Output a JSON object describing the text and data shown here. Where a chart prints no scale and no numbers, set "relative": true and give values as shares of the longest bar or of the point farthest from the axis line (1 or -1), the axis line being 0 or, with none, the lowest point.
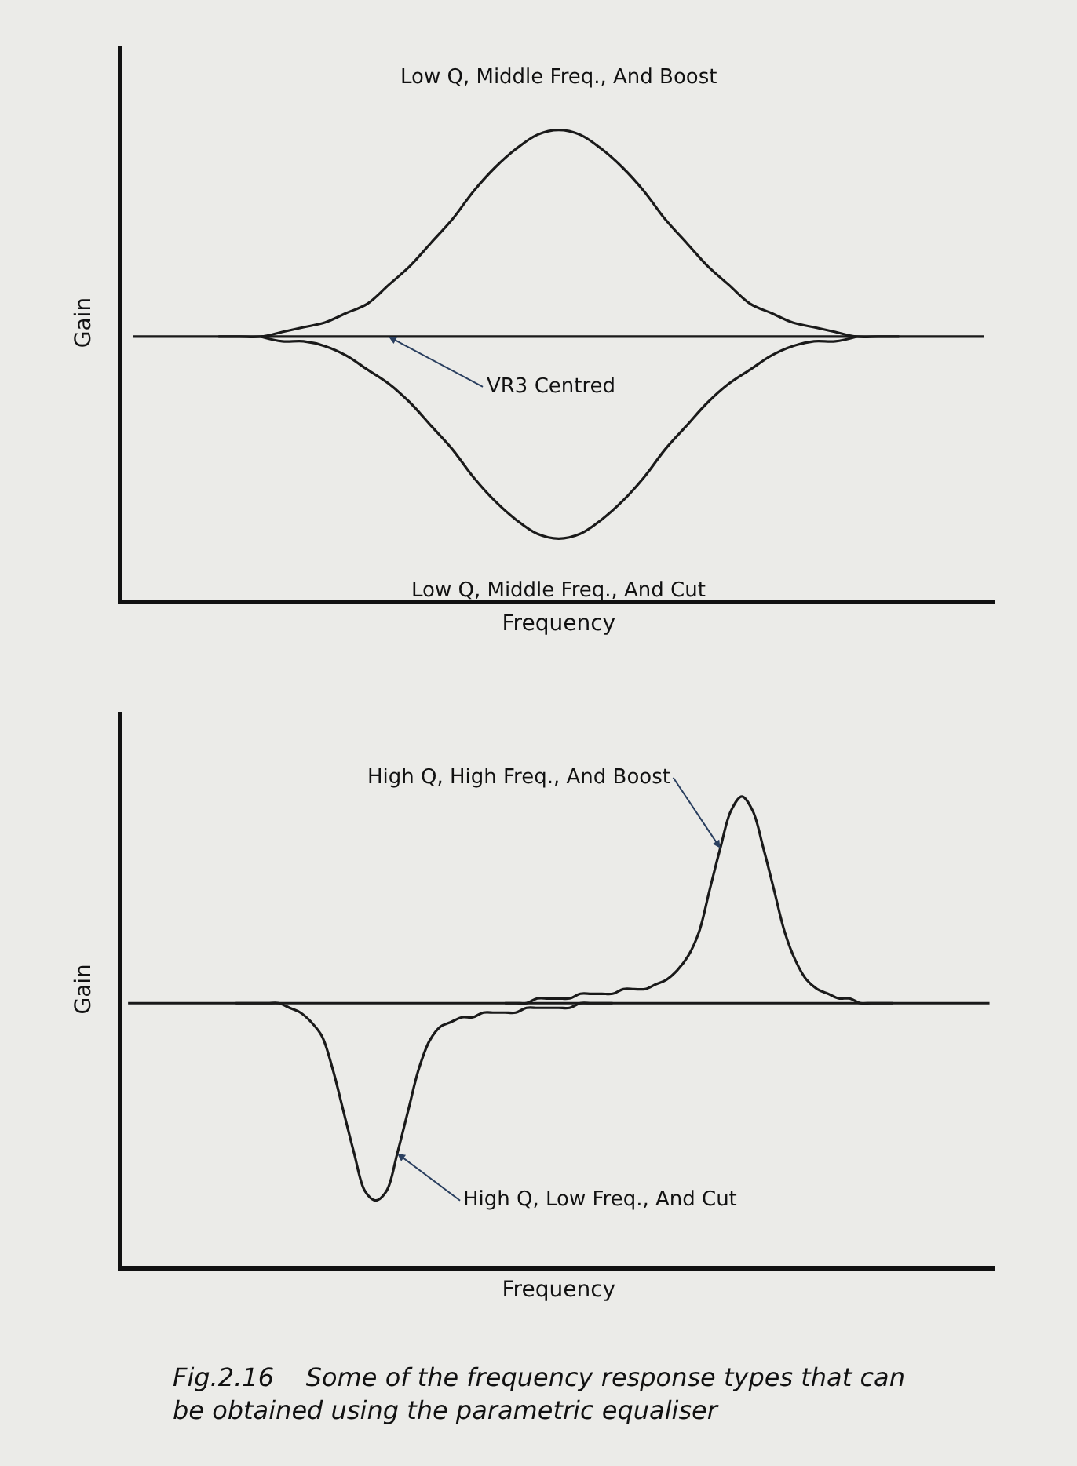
{
  "chart_data": [
    {
      "type": "line",
      "relative": true,
      "xlabel": "Frequency",
      "ylabel": "Gain",
      "legend": false,
      "grid": false,
      "marker": "none",
      "line_style": "solid",
      "categories": [
        null,
        null,
        null,
        null,
        null,
        null,
        null,
        null,
        null,
        null,
        null,
        null,
        null,
        null,
        null,
        null,
        null,
        null,
        null,
        null,
        null,
        null,
        null,
        null,
        null,
        null,
        null,
        null,
        null,
        null,
        null,
        null,
        null,
        null,
        null,
        null,
        null,
        null,
        null,
        null,
        null
      ],
      "series": [
        {
          "name": "Low Q, Middle Freq., And Boost",
          "color": "#1a1a1a",
          "values": [
            null,
            null,
            null,
            null,
            0.56,
            0.56,
            0.56,
            0.57,
            0.58,
            0.59,
            0.61,
            0.63,
            0.67,
            0.71,
            0.76,
            0.81,
            0.87,
            0.92,
            0.96,
            0.99,
            1.0,
            0.99,
            0.96,
            0.92,
            0.87,
            0.81,
            0.76,
            0.71,
            0.67,
            0.63,
            0.61,
            0.59,
            0.58,
            0.57,
            0.56,
            0.56,
            0.56,
            null,
            null,
            null,
            null
          ]
        },
        {
          "name": "VR3 Centred",
          "color": "#1a1a1a",
          "values": [
            0.56,
            0.56,
            0.56,
            0.56,
            0.56,
            0.56,
            0.56,
            0.56,
            0.56,
            0.56,
            0.56,
            0.56,
            0.56,
            0.56,
            0.56,
            0.56,
            0.56,
            0.56,
            0.56,
            0.56,
            0.56,
            0.56,
            0.56,
            0.56,
            0.56,
            0.56,
            0.56,
            0.56,
            0.56,
            0.56,
            0.56,
            0.56,
            0.56,
            0.56,
            0.56,
            0.56,
            0.56,
            0.56,
            0.56,
            0.56,
            0.56
          ]
        },
        {
          "name": "Low Q, Middle Freq., And Cut",
          "color": "#1a1a1a",
          "values": [
            null,
            null,
            null,
            null,
            null,
            null,
            0.56,
            0.55,
            0.55,
            0.54,
            0.52,
            0.49,
            0.46,
            0.42,
            0.37,
            0.32,
            0.26,
            0.21,
            0.17,
            0.14,
            0.13,
            0.14,
            0.17,
            0.21,
            0.26,
            0.32,
            0.37,
            0.42,
            0.46,
            0.49,
            0.52,
            0.54,
            0.55,
            0.55,
            0.56,
            null,
            null,
            null,
            null,
            null,
            null
          ]
        }
      ]
    },
    {
      "type": "line",
      "relative": true,
      "xlabel": "Frequency",
      "ylabel": "Gain",
      "legend": false,
      "grid": false,
      "marker": "none",
      "line_style": "solid",
      "annotations": [
        "Fig.2.16    Some of the frequency response types that can be obtained using the parametric equaliser"
      ],
      "categories": [
        null,
        null,
        null,
        null,
        null,
        null,
        null,
        null,
        null,
        null,
        null,
        null,
        null,
        null,
        null,
        null,
        null,
        null,
        null,
        null,
        null,
        null,
        null,
        null,
        null,
        null,
        null,
        null,
        null,
        null,
        null,
        null,
        null,
        null,
        null,
        null,
        null,
        null,
        null,
        null,
        null,
        null,
        null,
        null,
        null,
        null,
        null,
        null,
        null,
        null,
        null,
        null,
        null,
        null,
        null,
        null,
        null,
        null,
        null,
        null,
        null,
        null,
        null,
        null,
        null,
        null,
        null,
        null,
        null,
        null,
        null,
        null,
        null,
        null,
        null,
        null,
        null,
        null,
        null,
        null,
        null
      ],
      "series": [
        {
          "color": "#1a1a1a",
          "values": [
            0.56,
            0.56,
            0.56,
            0.56,
            0.56,
            0.56,
            0.56,
            0.56,
            0.56,
            0.56,
            0.56,
            0.56,
            0.56,
            0.56,
            0.56,
            0.56,
            0.56,
            0.56,
            0.56,
            0.56,
            0.56,
            0.56,
            0.56,
            0.56,
            0.56,
            0.56,
            0.56,
            0.56,
            0.56,
            0.56,
            0.56,
            0.56,
            0.56,
            0.56,
            0.56,
            0.56,
            0.56,
            0.56,
            0.56,
            0.56,
            0.56,
            0.56,
            0.56,
            0.56,
            0.56,
            0.56,
            0.56,
            0.56,
            0.56,
            0.56,
            0.56,
            0.56,
            0.56,
            0.56,
            0.56,
            0.56,
            0.56,
            0.56,
            0.56,
            0.56,
            0.56,
            0.56,
            0.56,
            0.56,
            0.56,
            0.56,
            0.56,
            0.56,
            0.56,
            0.56,
            0.56,
            0.56,
            0.56,
            0.56,
            0.56,
            0.56,
            0.56,
            0.56,
            0.56,
            0.56,
            0.56
          ]
        },
        {
          "name": "High Q, High Freq., And Boost",
          "color": "#1a1a1a",
          "values": [
            null,
            null,
            null,
            null,
            null,
            null,
            null,
            null,
            null,
            null,
            null,
            null,
            null,
            null,
            null,
            null,
            null,
            null,
            null,
            null,
            null,
            null,
            null,
            null,
            null,
            null,
            null,
            null,
            null,
            null,
            null,
            null,
            null,
            null,
            null,
            0.56,
            0.56,
            0.56,
            0.57,
            0.57,
            0.57,
            0.57,
            0.58,
            0.58,
            0.58,
            0.58,
            0.59,
            0.59,
            0.59,
            0.6,
            0.61,
            0.63,
            0.66,
            0.71,
            0.8,
            0.89,
            0.97,
            1.0,
            0.97,
            0.89,
            0.8,
            0.71,
            0.65,
            0.61,
            0.59,
            0.58,
            0.57,
            0.57,
            0.56,
            0.56,
            0.56,
            0.56,
            null,
            null,
            null,
            null,
            null,
            null,
            null,
            null,
            null
          ]
        },
        {
          "name": "High Q, Low Freq., And Cut",
          "color": "#1a1a1a",
          "values": [
            null,
            null,
            null,
            null,
            null,
            null,
            null,
            null,
            null,
            null,
            0.56,
            0.56,
            0.56,
            0.56,
            0.56,
            0.55,
            0.54,
            0.52,
            0.49,
            0.42,
            0.33,
            0.24,
            0.16,
            0.14,
            0.16,
            0.24,
            0.33,
            0.42,
            0.48,
            0.51,
            0.52,
            0.53,
            0.53,
            0.54,
            0.54,
            0.54,
            0.54,
            0.55,
            0.55,
            0.55,
            0.55,
            0.55,
            0.56,
            0.56,
            0.56,
            0.56,
            null,
            null,
            null,
            null,
            null,
            null,
            null,
            null,
            null,
            null,
            null,
            null,
            null,
            null,
            null,
            null,
            null,
            null,
            null,
            null,
            null,
            null,
            null,
            null,
            null,
            null,
            null,
            null,
            null,
            null,
            null,
            null,
            null,
            null,
            null
          ]
        }
      ]
    }
  ]
}
